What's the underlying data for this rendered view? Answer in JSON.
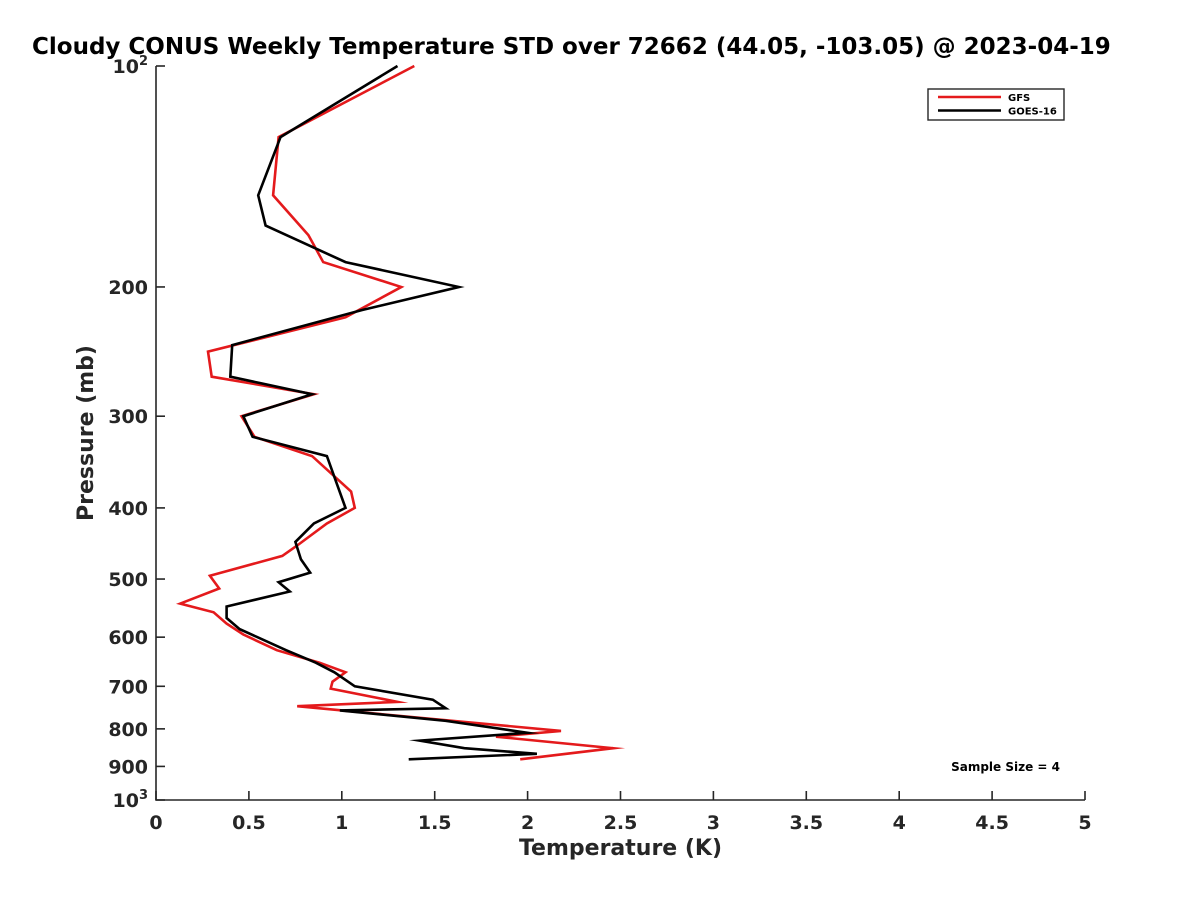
{
  "chart_data": {
    "type": "line",
    "title": "Cloudy CONUS Weekly Temperature STD over 72662 (44.05, -103.05) @ 2023-04-19",
    "xlabel": "Temperature (K)",
    "ylabel": "Pressure (mb)",
    "xlim": [
      0,
      5
    ],
    "ylim": [
      100,
      1000
    ],
    "y_scale": "log",
    "y_reversed": true,
    "x_ticks": [
      "0",
      "0.5",
      "1",
      "1.5",
      "2",
      "2.5",
      "3",
      "3.5",
      "4",
      "4.5",
      "5"
    ],
    "y_ticks": [
      {
        "value": 100,
        "label": "10",
        "sup": "2"
      },
      {
        "value": 200,
        "label": "200"
      },
      {
        "value": 300,
        "label": "300"
      },
      {
        "value": 400,
        "label": "400"
      },
      {
        "value": 500,
        "label": "500"
      },
      {
        "value": 600,
        "label": "600"
      },
      {
        "value": 700,
        "label": "700"
      },
      {
        "value": 800,
        "label": "800"
      },
      {
        "value": 900,
        "label": "900"
      },
      {
        "value": 1000,
        "label": "10",
        "sup": "3"
      }
    ],
    "grid": false,
    "legend_position": "top-right",
    "annotation": "Sample Size = 4",
    "series": [
      {
        "name": "GFS",
        "color": "#e41a1c",
        "points": [
          [
            1.39,
            100
          ],
          [
            0.66,
            125
          ],
          [
            0.63,
            150
          ],
          [
            0.82,
            170
          ],
          [
            0.9,
            185
          ],
          [
            1.32,
            200
          ],
          [
            1.02,
            220
          ],
          [
            0.28,
            245
          ],
          [
            0.3,
            265
          ],
          [
            0.85,
            280
          ],
          [
            0.46,
            300
          ],
          [
            0.53,
            320
          ],
          [
            0.84,
            340
          ],
          [
            1.05,
            380
          ],
          [
            1.07,
            400
          ],
          [
            0.92,
            420
          ],
          [
            0.76,
            450
          ],
          [
            0.68,
            465
          ],
          [
            0.29,
            495
          ],
          [
            0.34,
            515
          ],
          [
            0.13,
            540
          ],
          [
            0.31,
            555
          ],
          [
            0.38,
            575
          ],
          [
            0.47,
            595
          ],
          [
            0.65,
            625
          ],
          [
            0.88,
            650
          ],
          [
            1.02,
            670
          ],
          [
            0.95,
            690
          ],
          [
            0.94,
            705
          ],
          [
            1.3,
            735
          ],
          [
            0.76,
            745
          ],
          [
            1.47,
            775
          ],
          [
            2.18,
            805
          ],
          [
            1.83,
            820
          ],
          [
            2.46,
            850
          ],
          [
            1.96,
            880
          ]
        ]
      },
      {
        "name": "GOES-16",
        "color": "#000000",
        "points": [
          [
            1.3,
            100
          ],
          [
            0.67,
            125
          ],
          [
            0.55,
            150
          ],
          [
            0.59,
            165
          ],
          [
            1.02,
            185
          ],
          [
            1.63,
            200
          ],
          [
            1.11,
            215
          ],
          [
            0.41,
            240
          ],
          [
            0.4,
            265
          ],
          [
            0.84,
            280
          ],
          [
            0.47,
            300
          ],
          [
            0.52,
            320
          ],
          [
            0.92,
            340
          ],
          [
            0.98,
            375
          ],
          [
            1.02,
            400
          ],
          [
            0.85,
            420
          ],
          [
            0.75,
            445
          ],
          [
            0.78,
            470
          ],
          [
            0.83,
            490
          ],
          [
            0.66,
            505
          ],
          [
            0.72,
            520
          ],
          [
            0.38,
            545
          ],
          [
            0.38,
            565
          ],
          [
            0.45,
            585
          ],
          [
            0.7,
            625
          ],
          [
            0.86,
            650
          ],
          [
            0.96,
            670
          ],
          [
            1.07,
            700
          ],
          [
            1.49,
            730
          ],
          [
            1.56,
            750
          ],
          [
            0.99,
            755
          ],
          [
            1.56,
            780
          ],
          [
            2.0,
            810
          ],
          [
            1.42,
            830
          ],
          [
            1.66,
            850
          ],
          [
            2.05,
            865
          ],
          [
            1.36,
            880
          ]
        ]
      }
    ]
  }
}
